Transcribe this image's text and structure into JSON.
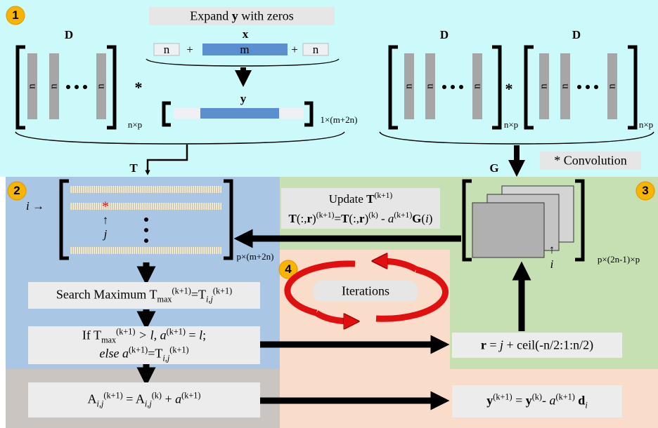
{
  "badges": [
    "1",
    "2",
    "3",
    "4"
  ],
  "step1": {
    "expand": [
      "Expand ",
      "y",
      " with zeros"
    ],
    "d_label": "D",
    "column": "n",
    "times": "*",
    "x_label": "x",
    "pad": "n",
    "middle": "m",
    "plus": "+",
    "y_label": "y",
    "d_size": "n×p",
    "y_size": "1×(m+2n)"
  },
  "step3": {
    "d_label": "D",
    "column": "n",
    "times": "*",
    "d_size": "n×p",
    "convolution": "* Convolution",
    "g_label": "G",
    "g_size": "p×(2n-1)×p",
    "g_arrow": "↑",
    "g_index": "i"
  },
  "step2": {
    "t_label": "T",
    "marker": "*",
    "i_arrow": [
      "i",
      " →"
    ],
    "j_arrow": "↑",
    "j_label": "j",
    "t_size": "p×(m+2n)"
  },
  "update": {
    "line1": [
      "Update ",
      "T",
      "(k+1)"
    ],
    "line2": [
      "T",
      "(:,",
      "r",
      ")",
      "(k+1)",
      "=",
      "T",
      "(:,",
      "r",
      ")",
      "(k)",
      " - ",
      "a",
      "(k+1)",
      "G",
      "(",
      "i",
      ")"
    ]
  },
  "iterations": "Iterations",
  "search": [
    "Search Maximum T",
    "max",
    "(k+1)",
    "=T",
    "i,j",
    "(k+1)"
  ],
  "condition": {
    "line1": [
      "If T",
      "max",
      "(k+1)",
      " > ",
      "l",
      ", ",
      "a",
      "(k+1)",
      " = ",
      "l",
      ";"
    ],
    "line2": [
      "else ",
      "a",
      "(k+1)",
      "=T",
      "i,j",
      "(k+1)"
    ]
  },
  "r_formula": [
    "r",
    " = ",
    "j",
    " + ceil(-n/2:1:n/2)"
  ],
  "a_update": [
    "A",
    "i,j",
    "(k+1)",
    " = A",
    "i,j",
    "(k)",
    " + ",
    "a",
    "(k+1)"
  ],
  "y_update": [
    "y",
    "(k+1)",
    " = ",
    "y",
    "(k)",
    "- ",
    "a",
    "(k+1)",
    " d",
    "i"
  ]
}
